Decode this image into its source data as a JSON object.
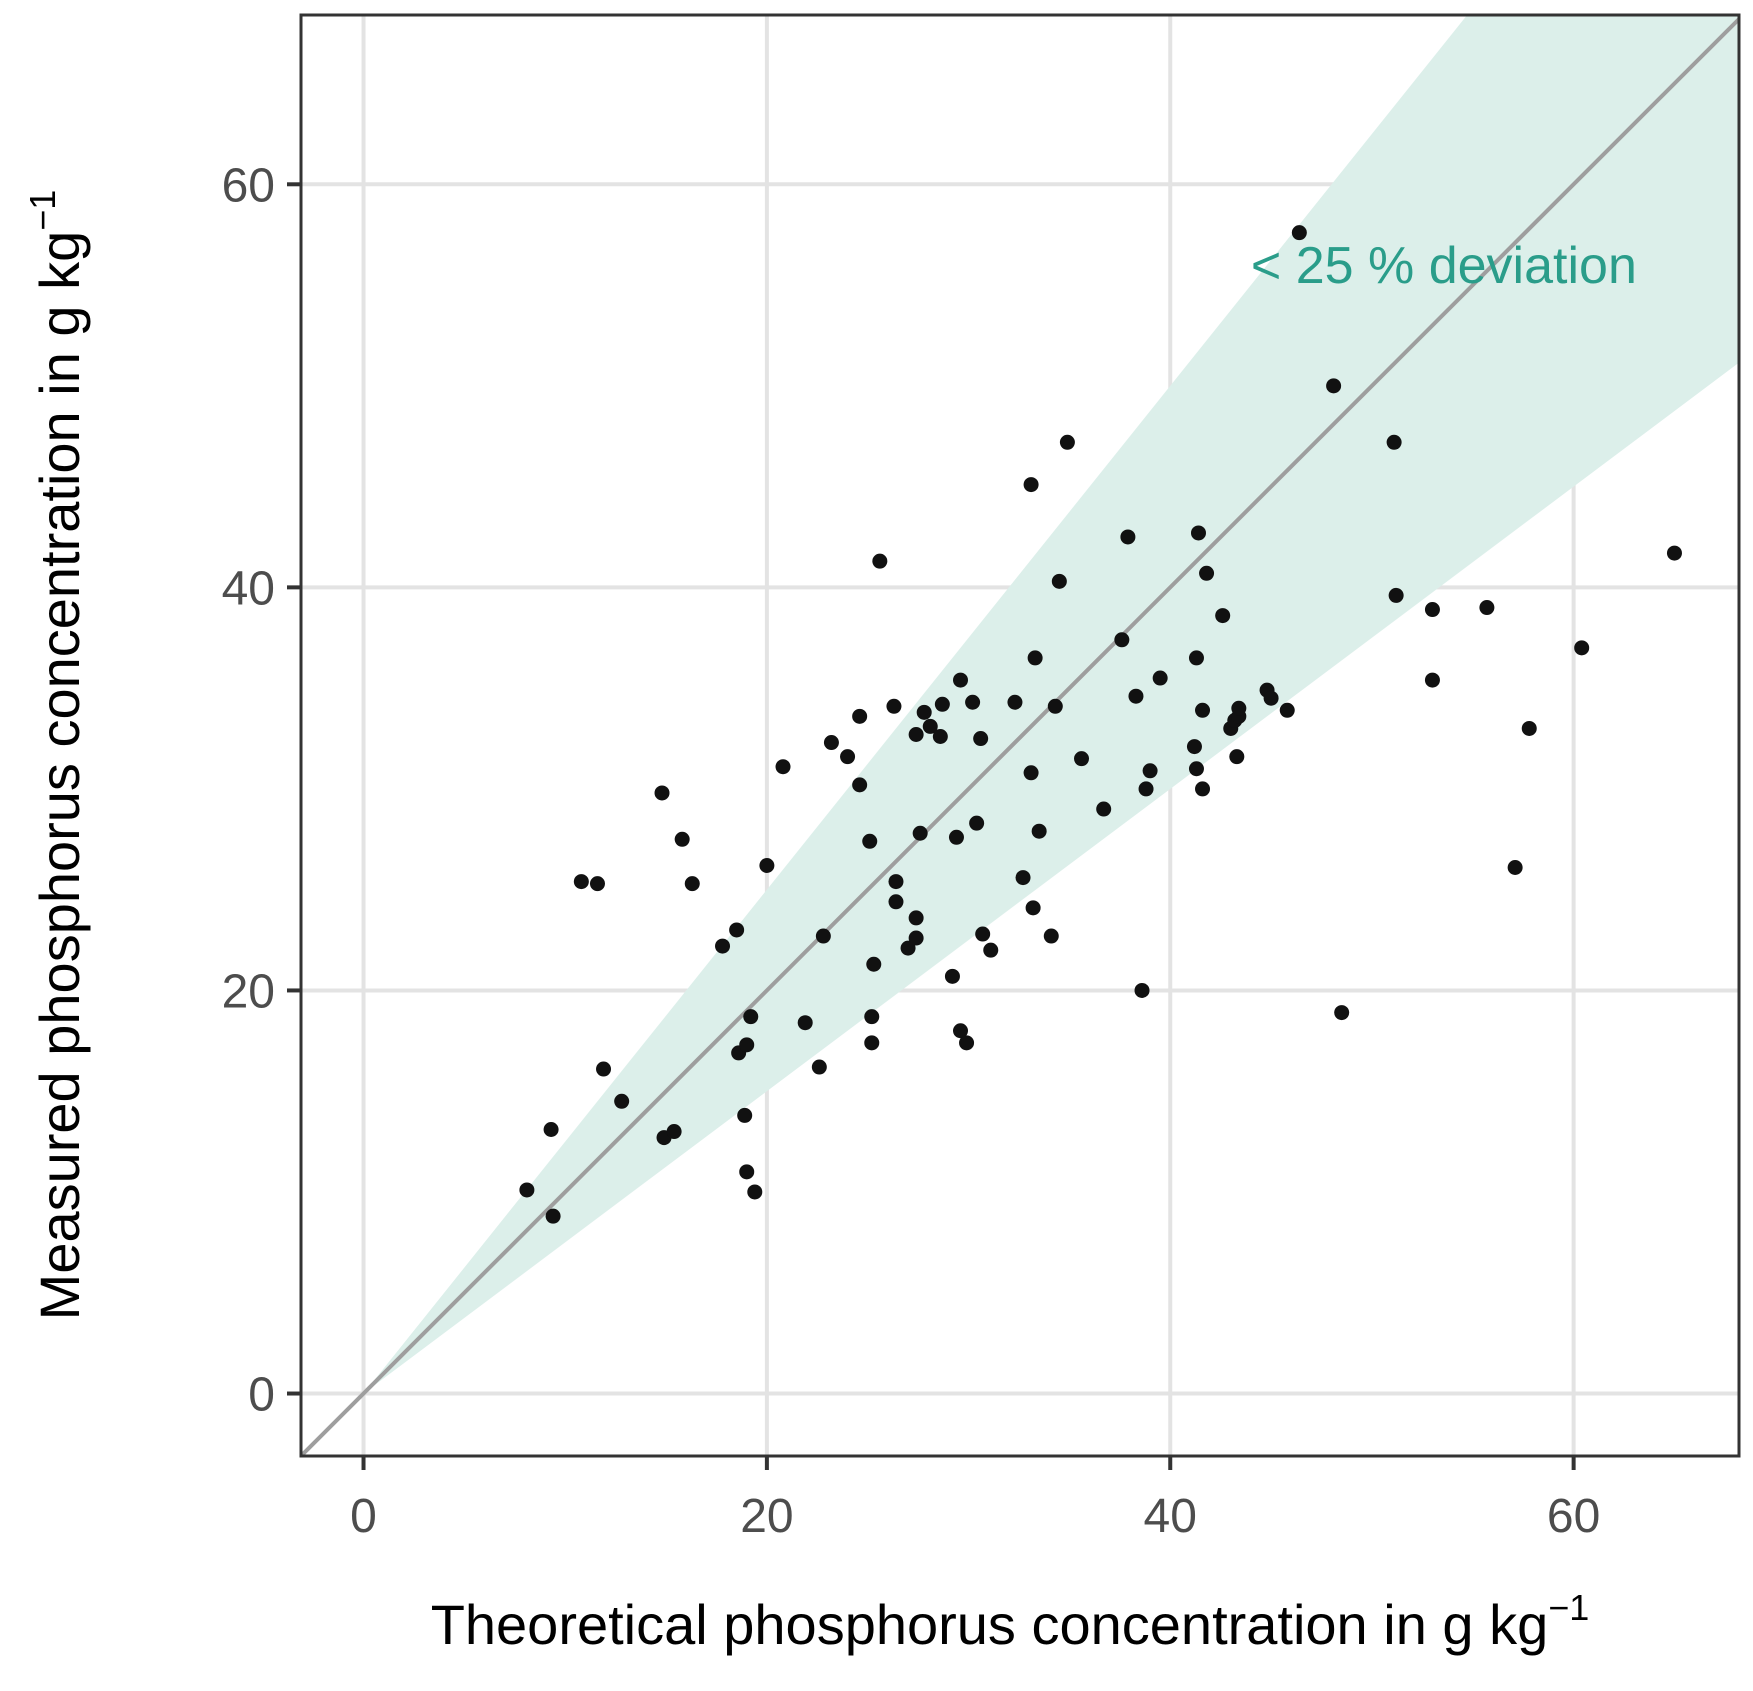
{
  "chart_data": {
    "type": "scatter",
    "title": "",
    "xlabel": "Theoretical phosphorus concentration in g kg",
    "ylabel": "Measured phosphorus concentration in g kg",
    "unit_exponent": "−1",
    "xlim": [
      -3.1,
      68.2
    ],
    "ylim": [
      -3.1,
      68.4
    ],
    "x_ticks": [
      0,
      20,
      40,
      60
    ],
    "y_ticks": [
      0,
      20,
      40,
      60
    ],
    "grid": true,
    "identity_line": {
      "slope": 1,
      "intercept": 0,
      "color": "#9e9e9e"
    },
    "band": {
      "lower_factor": 0.75,
      "upper_factor": 1.25,
      "color": "#dcefea"
    },
    "annotation": {
      "text": "< 25 % deviation",
      "x": 44,
      "y": 55.1,
      "color": "#2a9d8a"
    },
    "point_color": "#111111",
    "points": [
      [
        8.1,
        10.1
      ],
      [
        9.3,
        13.1
      ],
      [
        9.4,
        8.8
      ],
      [
        10.8,
        25.4
      ],
      [
        11.6,
        25.3
      ],
      [
        11.9,
        16.1
      ],
      [
        12.8,
        14.5
      ],
      [
        14.8,
        29.8
      ],
      [
        14.9,
        12.7
      ],
      [
        15.4,
        13.0
      ],
      [
        15.8,
        27.5
      ],
      [
        16.3,
        25.3
      ],
      [
        17.8,
        22.2
      ],
      [
        18.5,
        23.0
      ],
      [
        18.6,
        16.9
      ],
      [
        18.9,
        13.8
      ],
      [
        19.0,
        17.3
      ],
      [
        19.0,
        11.0
      ],
      [
        19.2,
        18.7
      ],
      [
        19.4,
        10.0
      ],
      [
        20.0,
        26.2
      ],
      [
        20.8,
        31.1
      ],
      [
        21.9,
        18.4
      ],
      [
        22.6,
        16.2
      ],
      [
        22.8,
        22.7
      ],
      [
        23.2,
        32.3
      ],
      [
        24.0,
        31.6
      ],
      [
        24.6,
        33.6
      ],
      [
        24.6,
        30.2
      ],
      [
        25.1,
        27.4
      ],
      [
        25.2,
        18.7
      ],
      [
        25.2,
        17.4
      ],
      [
        25.3,
        21.3
      ],
      [
        25.6,
        41.3
      ],
      [
        26.3,
        34.1
      ],
      [
        26.4,
        25.4
      ],
      [
        26.4,
        24.4
      ],
      [
        27.0,
        22.1
      ],
      [
        27.4,
        32.7
      ],
      [
        27.4,
        23.6
      ],
      [
        27.4,
        22.6
      ],
      [
        27.6,
        27.8
      ],
      [
        27.8,
        33.8
      ],
      [
        28.1,
        33.1
      ],
      [
        28.6,
        32.6
      ],
      [
        28.7,
        34.2
      ],
      [
        29.2,
        20.7
      ],
      [
        29.4,
        27.6
      ],
      [
        29.6,
        35.4
      ],
      [
        29.6,
        18.0
      ],
      [
        29.9,
        17.4
      ],
      [
        30.2,
        34.3
      ],
      [
        30.4,
        28.3
      ],
      [
        30.6,
        32.5
      ],
      [
        30.7,
        22.8
      ],
      [
        31.1,
        22.0
      ],
      [
        32.3,
        34.3
      ],
      [
        32.7,
        25.6
      ],
      [
        33.1,
        30.8
      ],
      [
        33.1,
        45.1
      ],
      [
        33.2,
        24.1
      ],
      [
        33.3,
        36.5
      ],
      [
        33.5,
        27.9
      ],
      [
        34.1,
        22.7
      ],
      [
        34.3,
        34.1
      ],
      [
        34.5,
        40.3
      ],
      [
        34.9,
        47.2
      ],
      [
        35.6,
        31.5
      ],
      [
        36.7,
        29.0
      ],
      [
        37.6,
        37.4
      ],
      [
        37.9,
        42.5
      ],
      [
        38.3,
        34.6
      ],
      [
        38.6,
        20.0
      ],
      [
        38.8,
        30.0
      ],
      [
        39.0,
        30.9
      ],
      [
        39.5,
        35.5
      ],
      [
        41.2,
        32.1
      ],
      [
        41.3,
        36.5
      ],
      [
        41.3,
        31.0
      ],
      [
        41.4,
        42.7
      ],
      [
        41.6,
        30.0
      ],
      [
        41.6,
        33.9
      ],
      [
        41.8,
        40.7
      ],
      [
        42.6,
        38.6
      ],
      [
        43.0,
        33.0
      ],
      [
        43.2,
        33.4
      ],
      [
        43.3,
        31.6
      ],
      [
        43.4,
        33.6
      ],
      [
        43.4,
        34.0
      ],
      [
        44.8,
        34.9
      ],
      [
        45.0,
        34.5
      ],
      [
        45.8,
        33.9
      ],
      [
        46.4,
        57.6
      ],
      [
        48.1,
        50.0
      ],
      [
        48.5,
        18.9
      ],
      [
        51.1,
        47.2
      ],
      [
        51.2,
        39.6
      ],
      [
        53.0,
        38.9
      ],
      [
        53.0,
        35.4
      ],
      [
        55.7,
        39.0
      ],
      [
        57.1,
        26.1
      ],
      [
        57.8,
        33.0
      ],
      [
        60.4,
        37.0
      ],
      [
        65.0,
        41.7
      ]
    ]
  }
}
